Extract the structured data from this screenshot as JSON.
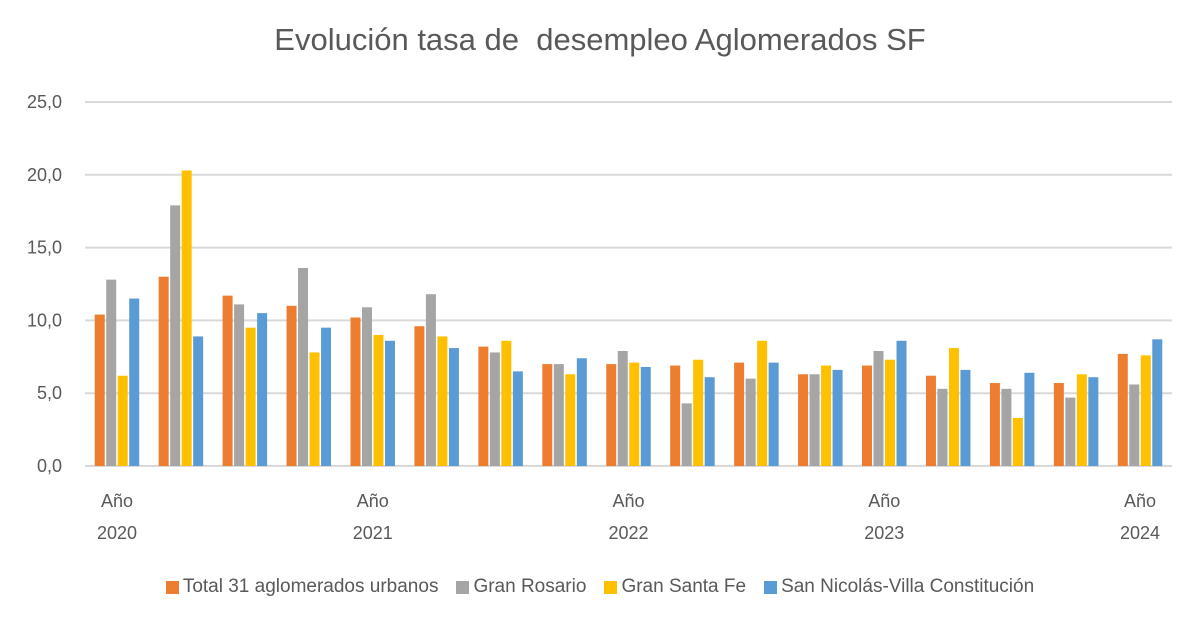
{
  "chart_data": {
    "type": "bar",
    "title": "Evolución tasa de  desempleo Aglomerados SF",
    "xlabel": "",
    "ylabel": "",
    "ylim": [
      0,
      25
    ],
    "yticks": [
      "0,0",
      "5,0",
      "10,0",
      "15,0",
      "20,0",
      "25,0"
    ],
    "grid": true,
    "legend_position": "bottom",
    "categories": [
      "Año 2020",
      "",
      "",
      "",
      "Año 2021",
      "",
      "",
      "",
      "Año 2022",
      "",
      "",
      "",
      "Año 2023",
      "",
      "",
      "",
      "Año 2024"
    ],
    "series": [
      {
        "name": "Total 31 aglomerados urbanos",
        "color": "#ED7D31",
        "values": [
          10.4,
          13.0,
          11.7,
          11.0,
          10.2,
          9.6,
          8.2,
          7.0,
          7.0,
          6.9,
          7.1,
          6.3,
          6.9,
          6.2,
          5.7,
          5.7,
          7.7
        ]
      },
      {
        "name": "Gran Rosario",
        "color": "#A5A5A5",
        "values": [
          12.8,
          17.9,
          11.1,
          13.6,
          10.9,
          11.8,
          7.8,
          7.0,
          7.9,
          4.3,
          6.0,
          6.3,
          7.9,
          5.3,
          5.3,
          4.7,
          5.6
        ]
      },
      {
        "name": "Gran Santa Fe",
        "color": "#FFC000",
        "values": [
          6.2,
          20.3,
          9.5,
          7.8,
          9.0,
          8.9,
          8.6,
          6.3,
          7.1,
          7.3,
          8.6,
          6.9,
          7.3,
          8.1,
          3.3,
          6.3,
          7.6
        ]
      },
      {
        "name": "San Nicolás-Villa Constitución",
        "color": "#5B9BD5",
        "values": [
          11.5,
          8.9,
          10.5,
          9.5,
          8.6,
          8.1,
          6.5,
          7.4,
          6.8,
          6.1,
          7.1,
          6.6,
          8.6,
          6.6,
          6.4,
          6.1,
          8.7
        ]
      }
    ]
  }
}
